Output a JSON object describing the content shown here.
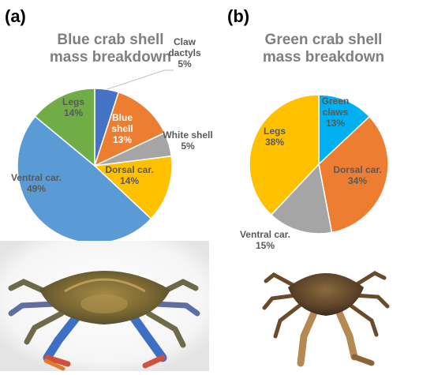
{
  "panels": [
    {
      "label": "(a)",
      "title_line1": "Blue crab shell",
      "title_line2": "mass breakdown"
    },
    {
      "label": "(b)",
      "title_line1": "Green crab shell",
      "title_line2": "mass breakdown"
    }
  ],
  "chart_data": [
    {
      "type": "pie",
      "title": "Blue crab shell mass breakdown",
      "slices": [
        {
          "label": [
            "Claw",
            "dactyls"
          ],
          "pct": "5%",
          "value": 5,
          "color": "#4472c4",
          "text_color": "#595959"
        },
        {
          "label": [
            "Blue",
            "shell"
          ],
          "pct": "13%",
          "value": 13,
          "color": "#ed7d31",
          "text_color": "#ffffff"
        },
        {
          "label": [
            "White shell"
          ],
          "pct": "5%",
          "value": 5,
          "color": "#a5a5a5",
          "text_color": "#595959"
        },
        {
          "label": [
            "Dorsal car."
          ],
          "pct": "14%",
          "value": 14,
          "color": "#ffc000",
          "text_color": "#595959"
        },
        {
          "label": [
            "Ventral car."
          ],
          "pct": "49%",
          "value": 49,
          "color": "#5b9bd5",
          "text_color": "#595959"
        },
        {
          "label": [
            "Legs"
          ],
          "pct": "14%",
          "value": 14,
          "color": "#70ad47",
          "text_color": "#595959"
        }
      ]
    },
    {
      "type": "pie",
      "title": "Green crab shell mass breakdown",
      "slices": [
        {
          "label": [
            "Green",
            "claws"
          ],
          "pct": "13%",
          "value": 13,
          "color": "#00b0f0",
          "text_color": "#595959"
        },
        {
          "label": [
            "Dorsal car."
          ],
          "pct": "34%",
          "value": 34,
          "color": "#ed7d31",
          "text_color": "#595959"
        },
        {
          "label": [
            "Ventral car."
          ],
          "pct": "15%",
          "value": 15,
          "color": "#a5a5a5",
          "text_color": "#595959"
        },
        {
          "label": [
            "Legs"
          ],
          "pct": "38%",
          "value": 38,
          "color": "#ffc000",
          "text_color": "#595959"
        }
      ]
    }
  ]
}
